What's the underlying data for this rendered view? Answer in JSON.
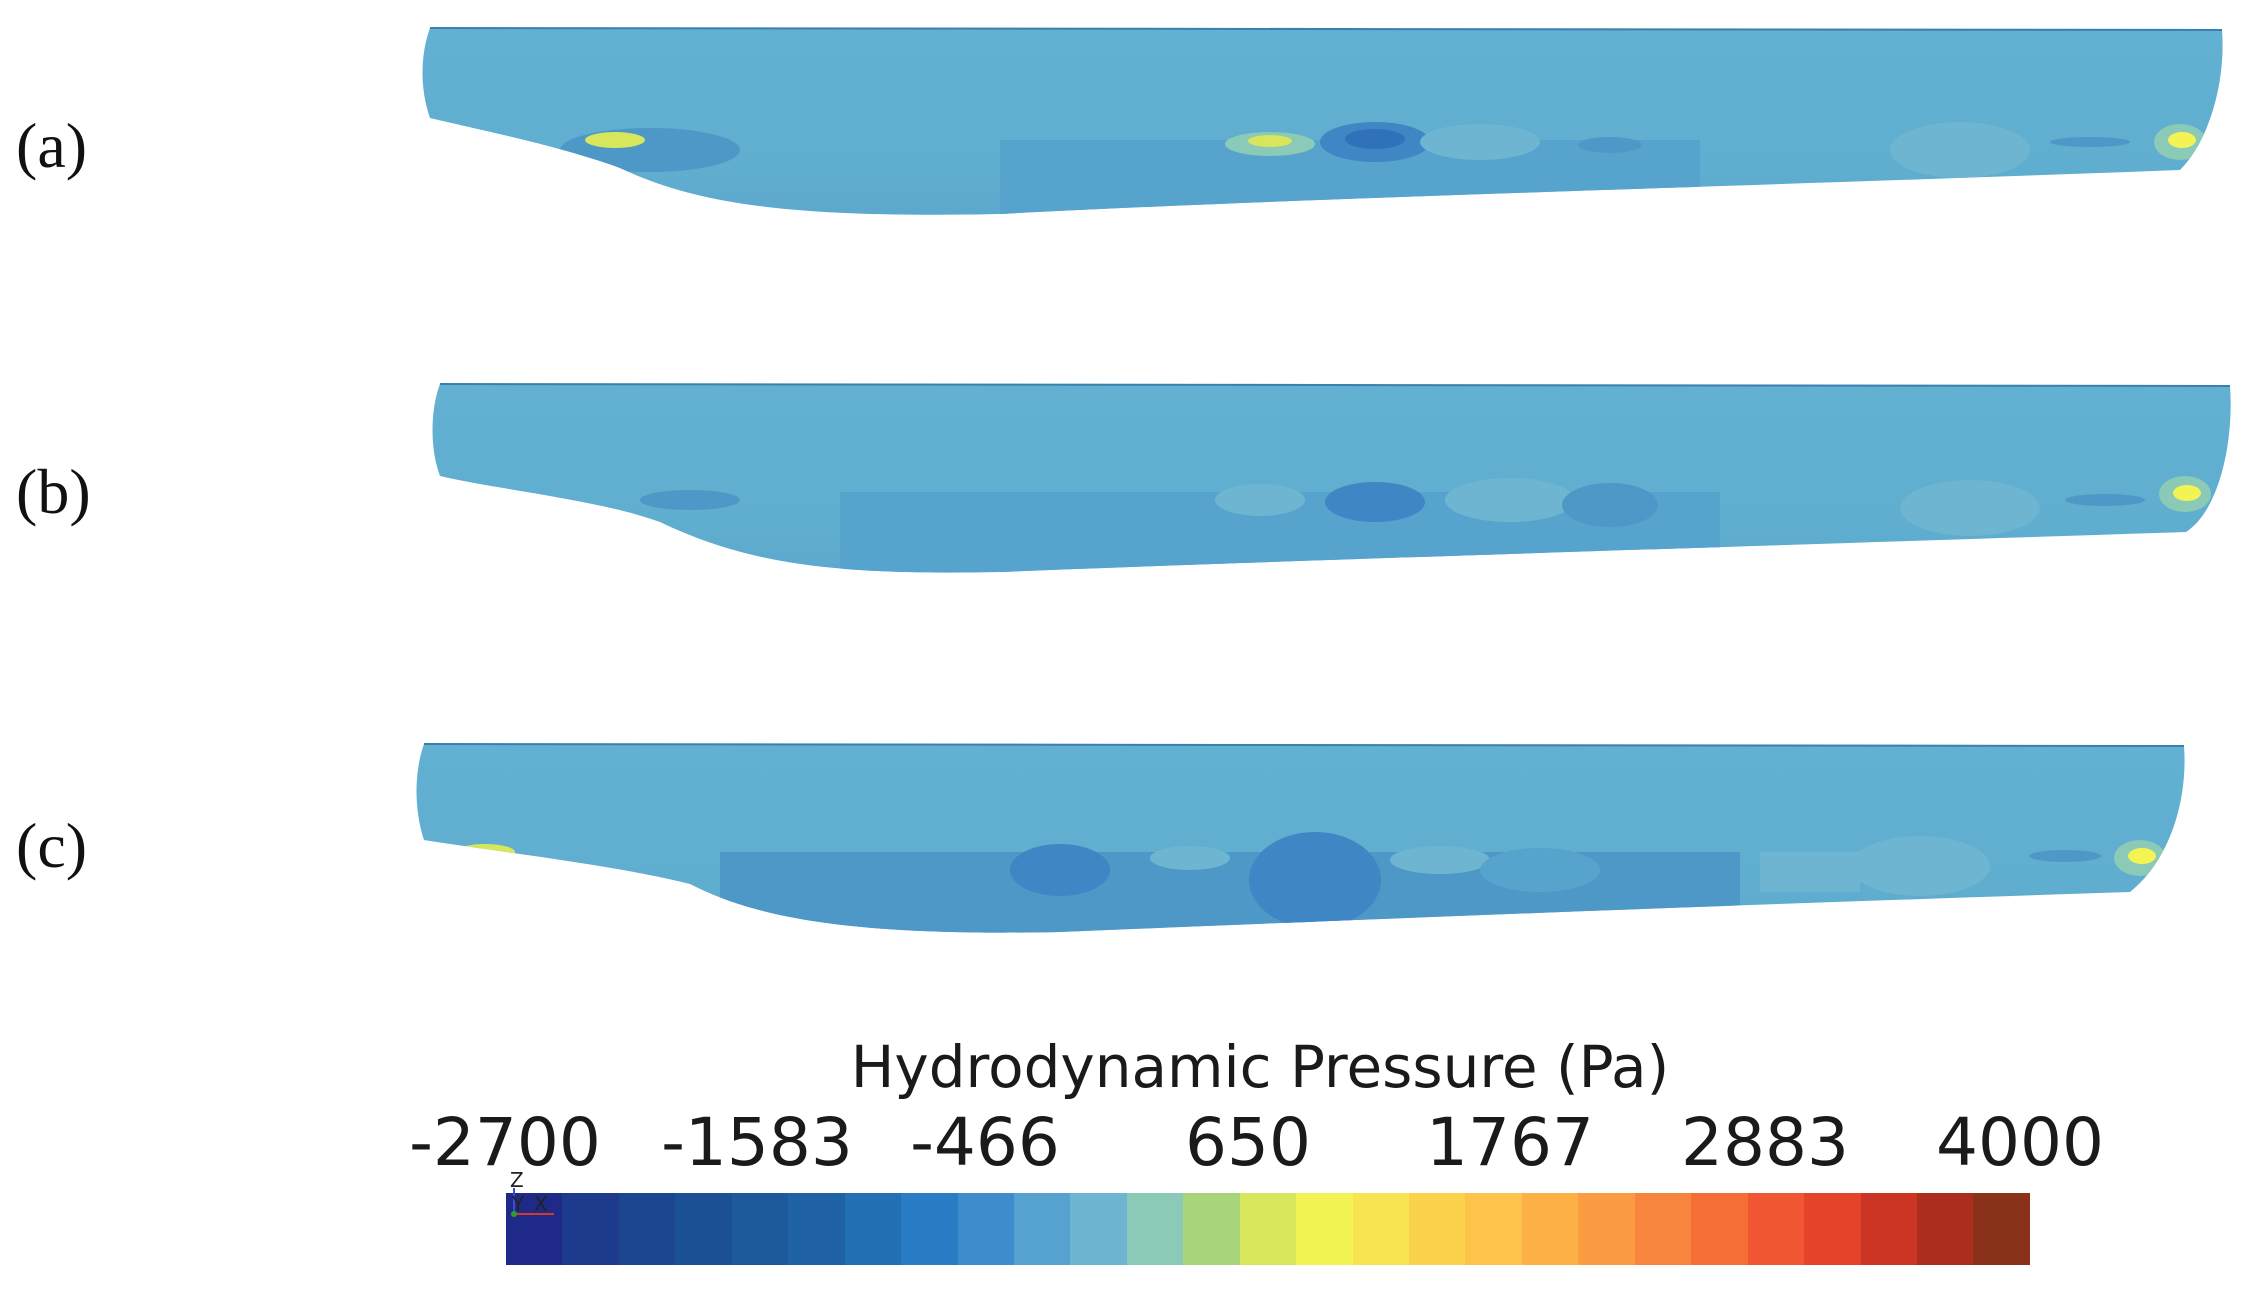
{
  "panels": [
    {
      "label": "(a)"
    },
    {
      "label": "(b)"
    },
    {
      "label": "(c)"
    }
  ],
  "legend": {
    "title": "Hydrodynamic Pressure (Pa)",
    "ticks": [
      "-2700",
      "-1583",
      "-466",
      "650",
      "1767",
      "2883",
      "4000"
    ],
    "min": -2700,
    "max": 4000,
    "colors": [
      "#1f2a88",
      "#1d3a8c",
      "#1c4690",
      "#1c5095",
      "#1d5a9c",
      "#1f63a6",
      "#2470b5",
      "#2a7cc4",
      "#3e8ccc",
      "#55a1cf",
      "#6db5d0",
      "#8ccab8",
      "#a8d47c",
      "#d7e65a",
      "#f4f354",
      "#f7e450",
      "#fbd24c",
      "#fec34a",
      "#fdb046",
      "#fb9c42",
      "#f8853d",
      "#f46e36",
      "#f05631",
      "#e5432a",
      "#cc3424",
      "#aa2d1e",
      "#893219"
    ]
  },
  "axis_triad": {
    "z": "Z",
    "y": "Y",
    "x": "X"
  },
  "colors": {
    "hull_base": "#5fadcf",
    "hull_dark": "#4e98c8",
    "hull_deep": "#3f86c4",
    "hull_light": "#8ccab8",
    "hull_yellow": "#d7e65a"
  }
}
